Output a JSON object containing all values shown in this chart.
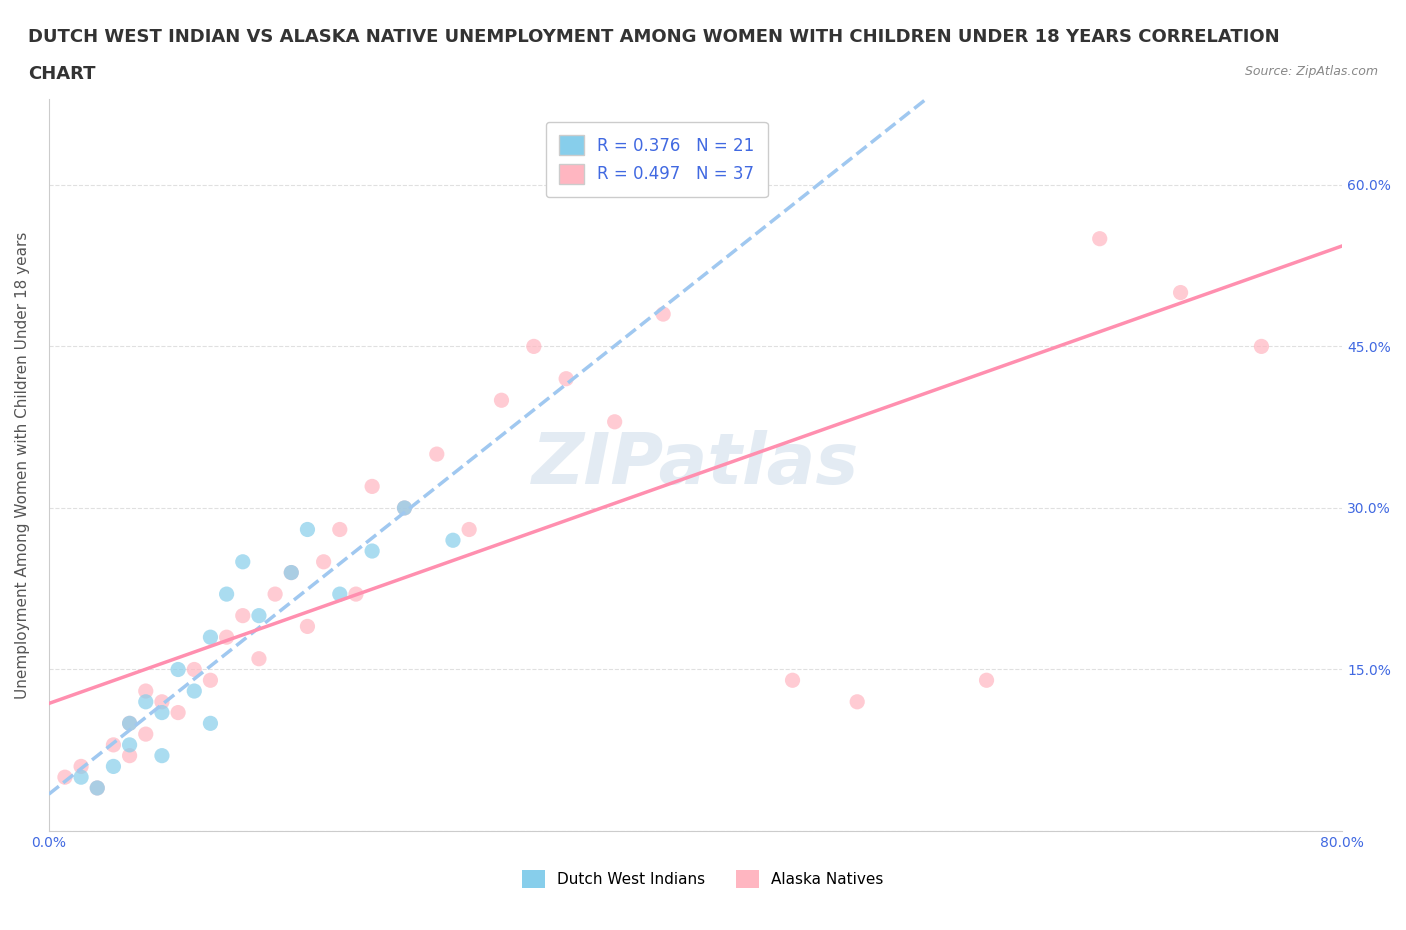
{
  "title_line1": "DUTCH WEST INDIAN VS ALASKA NATIVE UNEMPLOYMENT AMONG WOMEN WITH CHILDREN UNDER 18 YEARS CORRELATION",
  "title_line2": "CHART",
  "source": "Source: ZipAtlas.com",
  "ylabel": "Unemployment Among Women with Children Under 18 years",
  "xlim": [
    0,
    0.8
  ],
  "ylim": [
    0,
    0.68
  ],
  "xticks": [
    0.0,
    0.1,
    0.2,
    0.3,
    0.4,
    0.5,
    0.6,
    0.7,
    0.8
  ],
  "xticklabels": [
    "0.0%",
    "",
    "",
    "",
    "",
    "",
    "",
    "",
    "80.0%"
  ],
  "ytick_positions": [
    0.0,
    0.15,
    0.3,
    0.45,
    0.6
  ],
  "ytick_labels": [
    "",
    "15.0%",
    "30.0%",
    "45.0%",
    "60.0%"
  ],
  "watermark": "ZIPatlas",
  "legend_r1": "R = 0.376   N = 21",
  "legend_r2": "R = 0.497   N = 37",
  "blue_color": "#87CEEB",
  "pink_color": "#FFB6C1",
  "trend_line_blue_color": "#A0C8F0",
  "trend_line_pink_color": "#FF8FAF",
  "dutch_x": [
    0.02,
    0.03,
    0.04,
    0.05,
    0.05,
    0.06,
    0.07,
    0.07,
    0.08,
    0.09,
    0.1,
    0.1,
    0.11,
    0.12,
    0.13,
    0.15,
    0.16,
    0.18,
    0.2,
    0.22,
    0.25
  ],
  "dutch_y": [
    0.05,
    0.04,
    0.06,
    0.08,
    0.1,
    0.12,
    0.07,
    0.11,
    0.15,
    0.13,
    0.1,
    0.18,
    0.22,
    0.25,
    0.2,
    0.24,
    0.28,
    0.22,
    0.26,
    0.3,
    0.27
  ],
  "alaska_x": [
    0.01,
    0.02,
    0.03,
    0.04,
    0.05,
    0.05,
    0.06,
    0.06,
    0.07,
    0.08,
    0.09,
    0.1,
    0.11,
    0.12,
    0.13,
    0.14,
    0.15,
    0.16,
    0.17,
    0.18,
    0.19,
    0.2,
    0.22,
    0.24,
    0.26,
    0.28,
    0.3,
    0.32,
    0.35,
    0.38,
    0.42,
    0.46,
    0.5,
    0.58,
    0.65,
    0.7,
    0.75
  ],
  "alaska_y": [
    0.05,
    0.06,
    0.04,
    0.08,
    0.07,
    0.1,
    0.09,
    0.13,
    0.12,
    0.11,
    0.15,
    0.14,
    0.18,
    0.2,
    0.16,
    0.22,
    0.24,
    0.19,
    0.25,
    0.28,
    0.22,
    0.32,
    0.3,
    0.35,
    0.28,
    0.4,
    0.45,
    0.42,
    0.38,
    0.48,
    0.6,
    0.14,
    0.12,
    0.14,
    0.55,
    0.5,
    0.45
  ],
  "background_color": "#FFFFFF",
  "grid_color": "#E0E0E0",
  "title_fontsize": 13,
  "axis_label_fontsize": 11,
  "tick_fontsize": 10,
  "legend_fontsize": 12,
  "watermark_color": "#C8D8E8",
  "watermark_fontsize": 52,
  "ytick_color": "#4169E1",
  "xtick_color": "#4169E1",
  "legend_text_color": "#4169E1",
  "bottom_legend_label1": "Dutch West Indians",
  "bottom_legend_label2": "Alaska Natives"
}
